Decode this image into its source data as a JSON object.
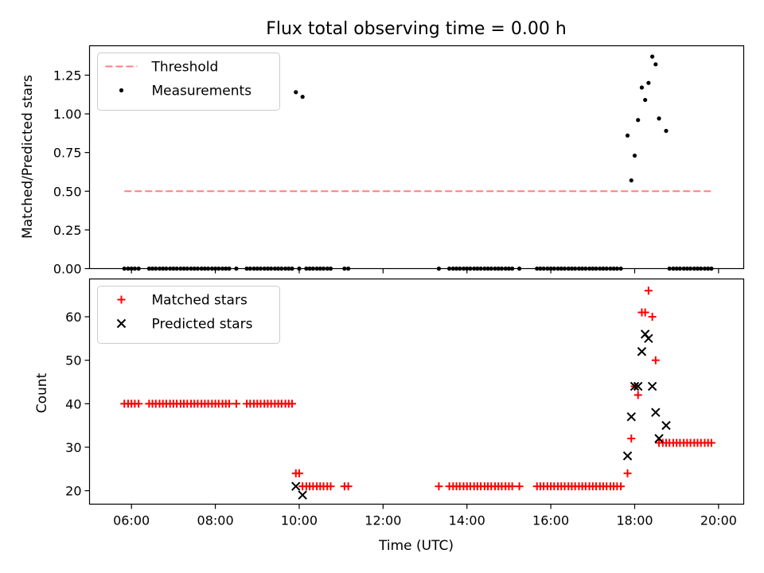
{
  "chart_data": [
    {
      "type": "scatter",
      "title": "Flux total observing time = 0.00 h",
      "xlabel": "",
      "ylabel": "Matched/Predicted stars",
      "xlim": [
        5.0,
        20.6
      ],
      "ylim": [
        0.0,
        1.44
      ],
      "yticks": [
        0.0,
        0.25,
        0.5,
        0.75,
        1.0,
        1.25
      ],
      "ytick_labels": [
        "0.00",
        "0.25",
        "0.50",
        "0.75",
        "1.00",
        "1.25"
      ],
      "grid": false,
      "legend_position": "upper-left",
      "series": [
        {
          "name": "Threshold",
          "style": "dashed-line",
          "color": "#ff7f7f",
          "x": [
            5.83,
            19.83
          ],
          "y": [
            0.5,
            0.5
          ]
        },
        {
          "name": "Measurements",
          "style": "dot",
          "color": "#000000",
          "x": [
            5.83,
            5.92,
            6.0,
            6.08,
            6.17,
            6.42,
            6.5,
            6.58,
            6.67,
            6.75,
            6.83,
            6.92,
            7.0,
            7.08,
            7.17,
            7.25,
            7.33,
            7.42,
            7.5,
            7.58,
            7.67,
            7.75,
            7.83,
            7.92,
            8.0,
            8.08,
            8.17,
            8.25,
            8.33,
            8.5,
            8.75,
            8.83,
            8.92,
            9.0,
            9.08,
            9.17,
            9.25,
            9.33,
            9.42,
            9.5,
            9.58,
            9.67,
            9.75,
            9.83,
            9.92,
            10.0,
            10.08,
            10.17,
            10.25,
            10.33,
            10.42,
            10.5,
            10.58,
            10.67,
            10.75,
            11.08,
            11.17,
            13.33,
            13.58,
            13.67,
            13.75,
            13.83,
            13.92,
            14.0,
            14.08,
            14.17,
            14.25,
            14.33,
            14.42,
            14.5,
            14.58,
            14.67,
            14.75,
            14.83,
            14.92,
            15.0,
            15.08,
            15.25,
            15.67,
            15.75,
            15.83,
            15.92,
            16.0,
            16.08,
            16.17,
            16.25,
            16.33,
            16.42,
            16.5,
            16.58,
            16.67,
            16.75,
            16.83,
            16.92,
            17.0,
            17.08,
            17.17,
            17.25,
            17.33,
            17.42,
            17.5,
            17.58,
            17.67,
            17.83,
            17.92,
            18.0,
            18.08,
            18.17,
            18.25,
            18.33,
            18.42,
            18.5,
            18.58,
            18.75,
            18.83,
            18.92,
            19.0,
            19.08,
            19.17,
            19.25,
            19.33,
            19.42,
            19.5,
            19.58,
            19.67,
            19.75,
            19.83
          ],
          "y": [
            0,
            0,
            0,
            0,
            0,
            0,
            0,
            0,
            0,
            0,
            0,
            0,
            0,
            0,
            0,
            0,
            0,
            0,
            0,
            0,
            0,
            0,
            0,
            0,
            0,
            0,
            0,
            0,
            0,
            0,
            0,
            0,
            0,
            0,
            0,
            0,
            0,
            0,
            0,
            0,
            0,
            0,
            0,
            0,
            1.14,
            0,
            1.11,
            0,
            0,
            0,
            0,
            0,
            0,
            0,
            0,
            0,
            0,
            0,
            0,
            0,
            0,
            0,
            0,
            0,
            0,
            0,
            0,
            0,
            0,
            0,
            0,
            0,
            0,
            0,
            0,
            0,
            0,
            0,
            0,
            0,
            0,
            0,
            0,
            0,
            0,
            0,
            0,
            0,
            0,
            0,
            0,
            0,
            0,
            0,
            0,
            0,
            0,
            0,
            0,
            0,
            0,
            0,
            0,
            0.86,
            0.57,
            0.73,
            0.96,
            1.17,
            1.09,
            1.2,
            1.37,
            1.32,
            0.97,
            0.89,
            0,
            0,
            0,
            0,
            0,
            0,
            0,
            0,
            0,
            0,
            0,
            0,
            0
          ]
        }
      ]
    },
    {
      "type": "scatter",
      "title": "",
      "xlabel": "Time (UTC)",
      "ylabel": "Count",
      "xlim": [
        5.0,
        20.6
      ],
      "ylim": [
        16.9,
        68.7
      ],
      "xticks": [
        6,
        8,
        10,
        12,
        14,
        16,
        18,
        20
      ],
      "xtick_labels": [
        "06:00",
        "08:00",
        "10:00",
        "12:00",
        "14:00",
        "16:00",
        "18:00",
        "20:00"
      ],
      "yticks": [
        20,
        30,
        40,
        50,
        60
      ],
      "ytick_labels": [
        "20",
        "30",
        "40",
        "50",
        "60"
      ],
      "grid": false,
      "legend_position": "upper-left",
      "series": [
        {
          "name": "Matched stars",
          "style": "plus",
          "color": "#ff0000",
          "x": [
            5.83,
            5.92,
            6.0,
            6.08,
            6.17,
            6.42,
            6.5,
            6.58,
            6.67,
            6.75,
            6.83,
            6.92,
            7.0,
            7.08,
            7.17,
            7.25,
            7.33,
            7.42,
            7.5,
            7.58,
            7.67,
            7.75,
            7.83,
            7.92,
            8.0,
            8.08,
            8.17,
            8.25,
            8.33,
            8.5,
            8.75,
            8.83,
            8.92,
            9.0,
            9.08,
            9.17,
            9.25,
            9.33,
            9.42,
            9.5,
            9.58,
            9.67,
            9.75,
            9.83,
            9.92,
            10.0,
            10.08,
            10.17,
            10.25,
            10.33,
            10.42,
            10.5,
            10.58,
            10.67,
            10.75,
            11.08,
            11.17,
            13.33,
            13.58,
            13.67,
            13.75,
            13.83,
            13.92,
            14.0,
            14.08,
            14.17,
            14.25,
            14.33,
            14.42,
            14.5,
            14.58,
            14.67,
            14.75,
            14.83,
            14.92,
            15.0,
            15.08,
            15.25,
            15.67,
            15.75,
            15.83,
            15.92,
            16.0,
            16.08,
            16.17,
            16.25,
            16.33,
            16.42,
            16.5,
            16.58,
            16.67,
            16.75,
            16.83,
            16.92,
            17.0,
            17.08,
            17.17,
            17.25,
            17.33,
            17.42,
            17.5,
            17.58,
            17.67,
            17.83,
            17.92,
            18.0,
            18.08,
            18.17,
            18.25,
            18.33,
            18.42,
            18.5,
            18.58,
            18.67,
            18.75,
            18.83,
            18.92,
            19.0,
            19.08,
            19.17,
            19.25,
            19.33,
            19.42,
            19.5,
            19.58,
            19.67,
            19.75,
            19.83
          ],
          "y": [
            40,
            40,
            40,
            40,
            40,
            40,
            40,
            40,
            40,
            40,
            40,
            40,
            40,
            40,
            40,
            40,
            40,
            40,
            40,
            40,
            40,
            40,
            40,
            40,
            40,
            40,
            40,
            40,
            40,
            40,
            40,
            40,
            40,
            40,
            40,
            40,
            40,
            40,
            40,
            40,
            40,
            40,
            40,
            40,
            24,
            24,
            21,
            21,
            21,
            21,
            21,
            21,
            21,
            21,
            21,
            21,
            21,
            21,
            21,
            21,
            21,
            21,
            21,
            21,
            21,
            21,
            21,
            21,
            21,
            21,
            21,
            21,
            21,
            21,
            21,
            21,
            21,
            21,
            21,
            21,
            21,
            21,
            21,
            21,
            21,
            21,
            21,
            21,
            21,
            21,
            21,
            21,
            21,
            21,
            21,
            21,
            21,
            21,
            21,
            21,
            21,
            21,
            21,
            24,
            32,
            44,
            42,
            61,
            61,
            66,
            60,
            50,
            31,
            31,
            31,
            31,
            31,
            31,
            31,
            31,
            31,
            31,
            31,
            31,
            31,
            31,
            31,
            31
          ]
        },
        {
          "name": "Predicted stars",
          "style": "x",
          "color": "#000000",
          "x": [
            9.92,
            10.08,
            17.83,
            17.92,
            18.0,
            18.08,
            18.17,
            18.25,
            18.33,
            18.42,
            18.5,
            18.58,
            18.75
          ],
          "y": [
            21,
            19,
            28,
            37,
            44,
            44,
            52,
            56,
            55,
            44,
            38,
            32,
            35
          ]
        }
      ]
    }
  ]
}
